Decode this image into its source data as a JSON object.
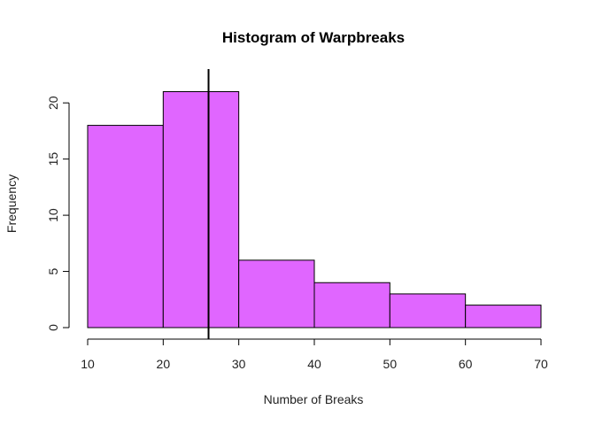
{
  "chart_data": {
    "type": "bar",
    "title": "Histogram of Warpbreaks",
    "xlabel": "Number of Breaks",
    "ylabel": "Frequency",
    "bins": [
      [
        10,
        20
      ],
      [
        20,
        30
      ],
      [
        30,
        40
      ],
      [
        40,
        50
      ],
      [
        50,
        60
      ],
      [
        60,
        70
      ]
    ],
    "values": [
      18,
      21,
      6,
      4,
      3,
      2
    ],
    "xlim": [
      10,
      70
    ],
    "ylim": [
      0,
      21
    ],
    "x_ticks": [
      10,
      20,
      30,
      40,
      50,
      60,
      70
    ],
    "y_ticks": [
      0,
      5,
      10,
      15,
      20
    ],
    "bar_color": "#E066FF",
    "reference_line": {
      "x": 26,
      "color": "#000000"
    },
    "grid": false,
    "legend": "none"
  }
}
